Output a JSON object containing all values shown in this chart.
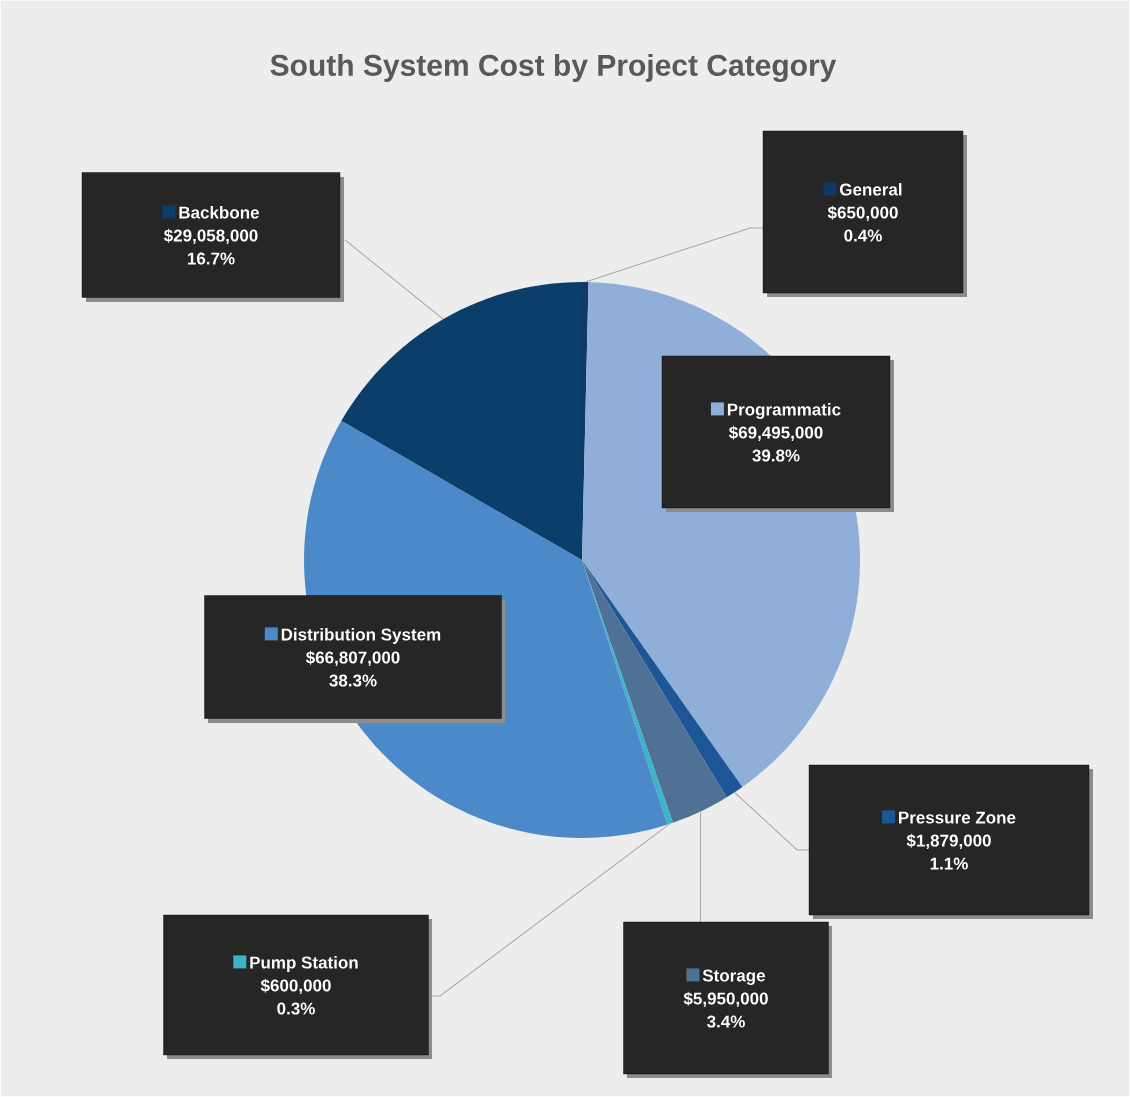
{
  "chart_data": {
    "type": "pie",
    "title": "South System Cost by Project Category",
    "categories": [
      "General",
      "Programmatic",
      "Pressure Zone",
      "Storage",
      "Pump Station",
      "Distribution System",
      "Backbone"
    ],
    "values": [
      650000,
      69495000,
      1879000,
      5950000,
      600000,
      66807000,
      29058000
    ],
    "colors": [
      "#0d3a66",
      "#8fafd9",
      "#1d5696",
      "#4f7196",
      "#3cb4cc",
      "#4b89c9",
      "#0c3e6c"
    ],
    "value_labels": [
      "$650,000",
      "$69,495,000",
      "$1,879,000",
      "$5,950,000",
      "$600,000",
      "$66,807,000",
      "$29,058,000"
    ],
    "legend": "right",
    "annotations": [
      "0.4%",
      "39.8%",
      "1.1%",
      "3.4%",
      "0.3%",
      "38.3%",
      "16.7%"
    ]
  }
}
